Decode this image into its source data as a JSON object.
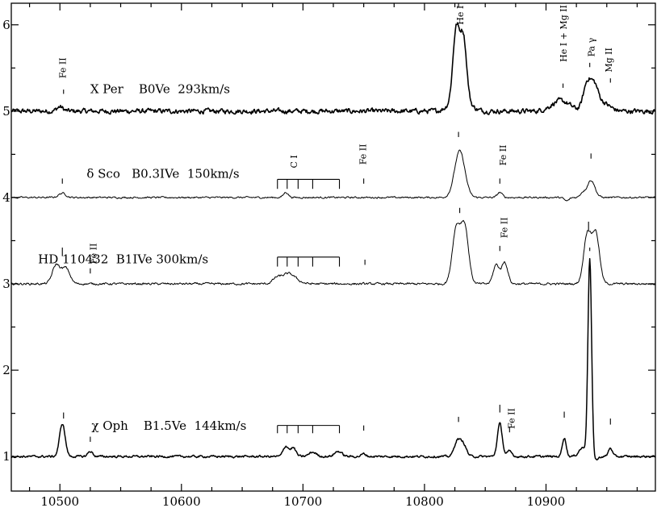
{
  "chart_data": {
    "type": "line",
    "title": "",
    "xlabel": "",
    "ylabel": "",
    "xlim": [
      10460,
      10990
    ],
    "ylim": [
      0.6,
      6.25
    ],
    "x_ticks": [
      10500,
      10600,
      10700,
      10800,
      10900
    ],
    "y_ticks": [
      1,
      2,
      3,
      4,
      5,
      6
    ],
    "grid": false,
    "legend": "none",
    "series": [
      {
        "label": "X Per    B0Ve  293km/s",
        "baseline": 5.0,
        "noise": 0.022,
        "stroke_width": 1.6,
        "features": [
          {
            "center": 10500,
            "amp": 0.05,
            "sigma": 2.5
          },
          {
            "center": 10826,
            "amp": 0.78,
            "sigma": 2.6
          },
          {
            "center": 10832,
            "amp": 0.7,
            "sigma": 2.6
          },
          {
            "center": 10829,
            "amp": 0.18,
            "sigma": 7.0
          },
          {
            "center": 10912,
            "amp": 0.12,
            "sigma": 7.5
          },
          {
            "center": 10934,
            "amp": 0.32,
            "sigma": 3.2
          },
          {
            "center": 10940,
            "amp": 0.22,
            "sigma": 3.0
          },
          {
            "center": 10946,
            "amp": 0.1,
            "sigma": 6.0
          }
        ]
      },
      {
        "label": "δ Sco   B0.3IVe  150km/s",
        "baseline": 4.0,
        "noise": 0.008,
        "stroke_width": 1.0,
        "features": [
          {
            "center": 10502,
            "amp": 0.05,
            "sigma": 3.0
          },
          {
            "center": 10686,
            "amp": 0.06,
            "sigma": 2.0
          },
          {
            "center": 10829,
            "amp": 0.54,
            "sigma": 4.2
          },
          {
            "center": 10862,
            "amp": 0.06,
            "sigma": 2.0
          },
          {
            "center": 10937,
            "amp": 0.2,
            "sigma": 3.2
          },
          {
            "center": 10930,
            "amp": 0.05,
            "sigma": 2.0
          },
          {
            "center": 10917,
            "amp": -0.04,
            "sigma": 2.0
          }
        ]
      },
      {
        "label": "HD 110432  B1IVe 300km/s",
        "baseline": 3.0,
        "noise": 0.01,
        "stroke_width": 1.0,
        "features": [
          {
            "center": 10497,
            "amp": 0.22,
            "sigma": 3.2
          },
          {
            "center": 10505,
            "amp": 0.18,
            "sigma": 3.2
          },
          {
            "center": 10688,
            "amp": 0.12,
            "sigma": 6.0
          },
          {
            "center": 10678,
            "amp": 0.05,
            "sigma": 3.0
          },
          {
            "center": 10826,
            "amp": 0.62,
            "sigma": 3.2
          },
          {
            "center": 10833,
            "amp": 0.66,
            "sigma": 3.2
          },
          {
            "center": 10859,
            "amp": 0.22,
            "sigma": 2.5
          },
          {
            "center": 10866,
            "amp": 0.25,
            "sigma": 2.5
          },
          {
            "center": 10934,
            "amp": 0.58,
            "sigma": 3.0
          },
          {
            "center": 10941,
            "amp": 0.58,
            "sigma": 3.0
          }
        ]
      },
      {
        "label": "χ Oph    B1.5Ve  144km/s",
        "baseline": 1.0,
        "noise": 0.01,
        "stroke_width": 1.5,
        "features": [
          {
            "center": 10502,
            "amp": 0.38,
            "sigma": 2.3
          },
          {
            "center": 10525,
            "amp": 0.06,
            "sigma": 2.0
          },
          {
            "center": 10686,
            "amp": 0.12,
            "sigma": 2.2
          },
          {
            "center": 10692,
            "amp": 0.1,
            "sigma": 2.2
          },
          {
            "center": 10708,
            "amp": 0.05,
            "sigma": 3.0
          },
          {
            "center": 10729,
            "amp": 0.06,
            "sigma": 3.0
          },
          {
            "center": 10750,
            "amp": 0.03,
            "sigma": 2.0
          },
          {
            "center": 10827,
            "amp": 0.18,
            "sigma": 2.5
          },
          {
            "center": 10832,
            "amp": 0.14,
            "sigma": 2.5
          },
          {
            "center": 10862,
            "amp": 0.38,
            "sigma": 2.0
          },
          {
            "center": 10870,
            "amp": 0.06,
            "sigma": 2.0
          },
          {
            "center": 10915,
            "amp": 0.22,
            "sigma": 1.6
          },
          {
            "center": 10936,
            "amp": 2.28,
            "sigma": 1.5
          },
          {
            "center": 10930,
            "amp": 0.1,
            "sigma": 3.0
          },
          {
            "center": 10953,
            "amp": 0.1,
            "sigma": 1.6
          },
          {
            "center": 10941,
            "amp": -0.04,
            "sigma": 2.0
          }
        ]
      }
    ],
    "line_labels": [
      {
        "text": "Fe II",
        "x": 10503,
        "y": 5.38
      },
      {
        "text": "He I",
        "x": 10830,
        "y": 6.0
      },
      {
        "text": "He I + Mg II",
        "x": 10915,
        "y": 5.57
      },
      {
        "text": "Pa γ",
        "x": 10938,
        "y": 5.63
      },
      {
        "text": "Mg II",
        "x": 10952,
        "y": 5.45
      },
      {
        "text": "C I",
        "x": 10693,
        "y": 4.34
      },
      {
        "text": "Fe II",
        "x": 10750,
        "y": 4.38
      },
      {
        "text": "Fe II",
        "x": 10865,
        "y": 4.37
      },
      {
        "text": "Fe II",
        "x": 10866,
        "y": 3.53
      },
      {
        "text": "Fe II",
        "x": 10528,
        "y": 3.23
      },
      {
        "text": "Fe II",
        "x": 10872,
        "y": 1.32
      }
    ],
    "markers": [
      {
        "x": 10503,
        "y0": 5.2,
        "y1": 5.25
      },
      {
        "x": 10828,
        "y0": 6.2,
        "y1": 6.25
      },
      {
        "x": 10914,
        "y0": 5.27,
        "y1": 5.32
      },
      {
        "x": 10936,
        "y0": 5.51,
        "y1": 5.56
      },
      {
        "x": 10953,
        "y0": 5.33,
        "y1": 5.38
      },
      {
        "x": 10502,
        "y0": 4.16,
        "y1": 4.22
      },
      {
        "x": 10750,
        "y0": 4.16,
        "y1": 4.22
      },
      {
        "x": 10828,
        "y0": 4.7,
        "y1": 4.76
      },
      {
        "x": 10862,
        "y0": 4.16,
        "y1": 4.22
      },
      {
        "x": 10937,
        "y0": 4.45,
        "y1": 4.51
      },
      {
        "x": 10502,
        "y0": 3.32,
        "y1": 3.42
      },
      {
        "x": 10525,
        "y0": 3.12,
        "y1": 3.18
      },
      {
        "x": 10751,
        "y0": 3.22,
        "y1": 3.28
      },
      {
        "x": 10829,
        "y0": 3.82,
        "y1": 3.88
      },
      {
        "x": 10862,
        "y0": 3.38,
        "y1": 3.44
      },
      {
        "x": 10935,
        "y0": 3.62,
        "y1": 3.72
      },
      {
        "x": 10503,
        "y0": 1.44,
        "y1": 1.51
      },
      {
        "x": 10525,
        "y0": 1.17,
        "y1": 1.23
      },
      {
        "x": 10750,
        "y0": 1.3,
        "y1": 1.36
      },
      {
        "x": 10828,
        "y0": 1.4,
        "y1": 1.46
      },
      {
        "x": 10862,
        "y0": 1.51,
        "y1": 1.6
      },
      {
        "x": 10870,
        "y0": 1.28,
        "y1": 1.34
      },
      {
        "x": 10915,
        "y0": 1.45,
        "y1": 1.52
      },
      {
        "x": 10936,
        "y0": 3.38,
        "y1": 3.42
      },
      {
        "x": 10953,
        "y0": 1.37,
        "y1": 1.44
      }
    ],
    "ci_combs": [
      {
        "y_bar": 4.21,
        "y_tick": 4.1,
        "ticks": [
          10679,
          10687,
          10696,
          10708,
          10730
        ]
      },
      {
        "y_bar": 3.31,
        "y_tick": 3.2,
        "ticks": [
          10679,
          10687,
          10696,
          10708,
          10730
        ]
      },
      {
        "y_bar": 1.36,
        "y_tick": 1.27,
        "ticks": [
          10679,
          10687,
          10696,
          10708,
          10730
        ]
      }
    ]
  }
}
